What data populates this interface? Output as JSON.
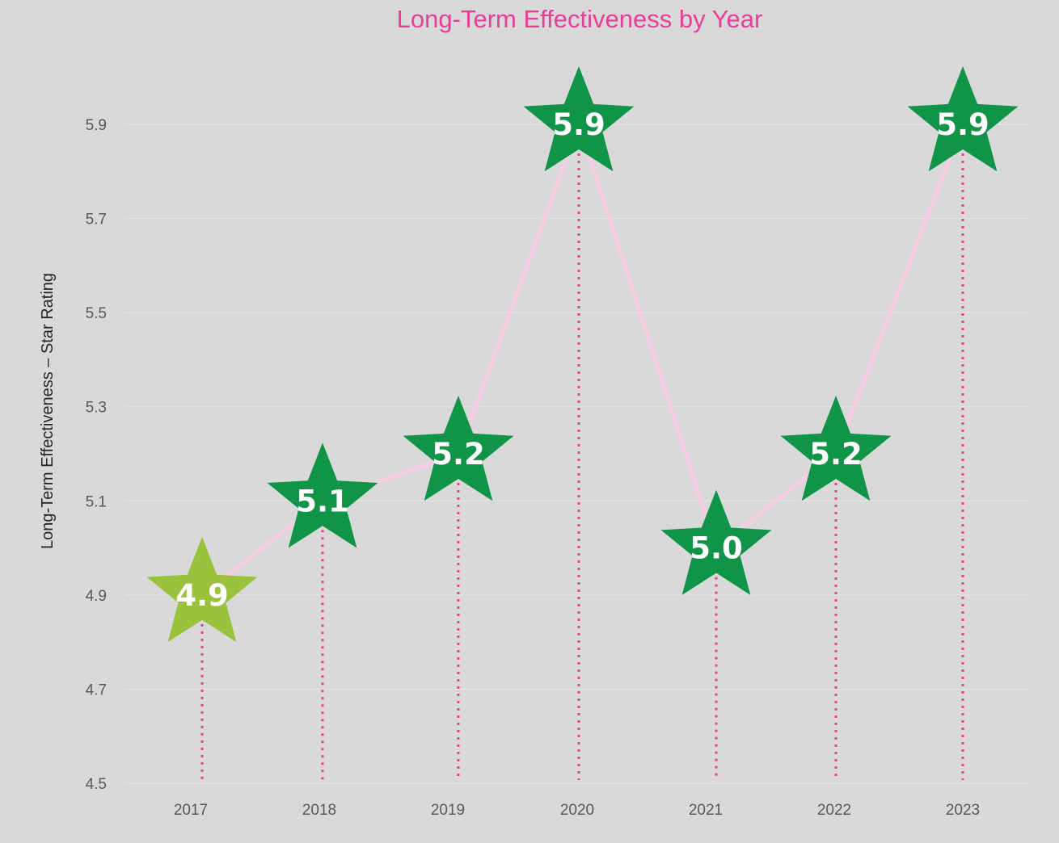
{
  "chart_data": {
    "type": "line",
    "title": "Long-Term Effectiveness by Year",
    "xlabel": "",
    "ylabel": "Long-Term Effectiveness – Star Rating",
    "categories": [
      "2017",
      "2018",
      "2019",
      "2020",
      "2021",
      "2022",
      "2023"
    ],
    "series": [
      {
        "values": [
          4.9,
          5.1,
          5.2,
          5.9,
          5.0,
          5.2,
          5.9
        ],
        "labels": [
          "4.9",
          "5.1",
          "5.2",
          "5.9",
          "5.0",
          "5.2",
          "5.9"
        ]
      }
    ],
    "marker": "star",
    "marker_colors": [
      "#9bc23c",
      "#0f9448",
      "#0f9448",
      "#0f9448",
      "#0f9448",
      "#0f9448",
      "#0f9448"
    ],
    "line_color": "#f8cde4",
    "drop_line_color": "#e8408f",
    "title_color": "#e83e9a",
    "ylim": [
      4.5,
      6.0
    ],
    "yticks": [
      "4.5",
      "4.7",
      "4.9",
      "5.1",
      "5.3",
      "5.5",
      "5.7",
      "5.9"
    ],
    "grid": true,
    "legend": "none"
  }
}
